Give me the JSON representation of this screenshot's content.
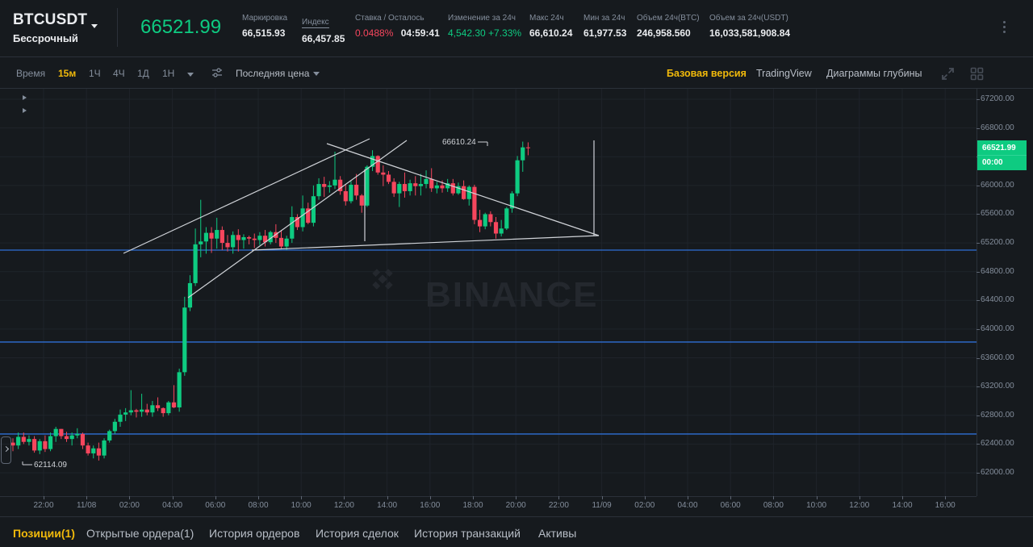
{
  "header": {
    "symbol": "BTCUSDT",
    "contract_type": "Бессрочный",
    "last_price": "66521.99",
    "stats": [
      {
        "label": "Маркировка",
        "value": "66,515.93"
      },
      {
        "label": "Индекс",
        "value": "66,457.85"
      },
      {
        "label": "Ставка / Осталось",
        "value": "0.0488%",
        "value2": "04:59:41"
      },
      {
        "label": "Изменение за 24ч",
        "value": "4,542.30 +7.33%"
      },
      {
        "label": "Макс 24ч",
        "value": "66,610.24"
      },
      {
        "label": "Мин за 24ч",
        "value": "61,977.53"
      },
      {
        "label": "Объем 24ч(BTC)",
        "value": "246,958.560"
      },
      {
        "label": "Объем за 24ч(USDT)",
        "value": "16,033,581,908.84"
      }
    ]
  },
  "toolbar": {
    "time_label": "Время",
    "intervals": [
      "15м",
      "1Ч",
      "4Ч",
      "1Д",
      "1Н"
    ],
    "active_interval": "15м",
    "price_type": "Последняя цена",
    "views": [
      "Базовая версия",
      "TradingView",
      "Диаграммы глубины"
    ],
    "active_view": "Базовая версия",
    "icons": [
      "settings-sliders-icon",
      "expand-icon",
      "grid-layout-icon"
    ]
  },
  "chart": {
    "watermark": "BINANCE",
    "current_price": "66521.99",
    "countdown": "00:00",
    "high_annotation": "66610.24",
    "low_annotation": "62114.09",
    "colors": {
      "up": "#0ecb81",
      "down": "#f6465d",
      "hline": "#2f6fd6",
      "drawing": "#c8c8c8",
      "accent": "#f0b90b"
    },
    "horizontal_lines": [
      65100,
      63820,
      62540
    ]
  },
  "chart_data": {
    "type": "candlestick",
    "title": "BTCUSDT Бессрочный 15м",
    "xlabel": "",
    "ylabel": "",
    "ylim": [
      61850,
      67350
    ],
    "y_ticks": [
      "67200.00",
      "66800.00",
      "66400.00",
      "66000.00",
      "65600.00",
      "65200.00",
      "64800.00",
      "64400.00",
      "64000.00",
      "63600.00",
      "63200.00",
      "62800.00",
      "62400.00",
      "62000.00"
    ],
    "x_ticks": [
      "22:00",
      "11/08",
      "02:00",
      "04:00",
      "06:00",
      "08:00",
      "10:00",
      "12:00",
      "14:00",
      "16:00",
      "18:00",
      "20:00",
      "22:00",
      "11/09",
      "02:00",
      "04:00",
      "06:00",
      "08:00",
      "10:00",
      "12:00",
      "14:00",
      "16:00"
    ],
    "candles_ohlc": [
      [
        62420,
        62480,
        62300,
        62380
      ],
      [
        62380,
        62560,
        62330,
        62500
      ],
      [
        62500,
        62560,
        62400,
        62430
      ],
      [
        62430,
        62520,
        62380,
        62470
      ],
      [
        62470,
        62510,
        62280,
        62310
      ],
      [
        62310,
        62470,
        62260,
        62440
      ],
      [
        62440,
        62520,
        62290,
        62330
      ],
      [
        62330,
        62560,
        62300,
        62510
      ],
      [
        62510,
        62640,
        62430,
        62610
      ],
      [
        62610,
        62610,
        62470,
        62510
      ],
      [
        62510,
        62570,
        62430,
        62470
      ],
      [
        62470,
        62560,
        62380,
        62520
      ],
      [
        62520,
        62620,
        62480,
        62540
      ],
      [
        62540,
        62560,
        62330,
        62380
      ],
      [
        62380,
        62420,
        62240,
        62270
      ],
      [
        62270,
        62380,
        62200,
        62340
      ],
      [
        62340,
        62420,
        62170,
        62240
      ],
      [
        62240,
        62480,
        62200,
        62450
      ],
      [
        62450,
        62600,
        62420,
        62580
      ],
      [
        62580,
        62750,
        62540,
        62710
      ],
      [
        62710,
        62880,
        62640,
        62810
      ],
      [
        62810,
        62900,
        62720,
        62840
      ],
      [
        62840,
        63150,
        62800,
        62870
      ],
      [
        62870,
        62890,
        62770,
        62850
      ],
      [
        62850,
        63100,
        62780,
        62880
      ],
      [
        62880,
        62960,
        62800,
        62840
      ],
      [
        62840,
        63000,
        62780,
        62940
      ],
      [
        62940,
        63050,
        62860,
        62900
      ],
      [
        62900,
        62910,
        62780,
        62830
      ],
      [
        62830,
        63000,
        62800,
        62980
      ],
      [
        62980,
        63220,
        62900,
        62910
      ],
      [
        62910,
        63450,
        62850,
        63400
      ],
      [
        63400,
        64450,
        63350,
        64300
      ],
      [
        64300,
        64750,
        64250,
        64640
      ],
      [
        64640,
        65400,
        64600,
        65180
      ],
      [
        65180,
        65800,
        65000,
        65220
      ],
      [
        65220,
        65420,
        65050,
        65340
      ],
      [
        65340,
        65420,
        65060,
        65260
      ],
      [
        65260,
        65550,
        65120,
        65380
      ],
      [
        65380,
        65430,
        65100,
        65200
      ],
      [
        65200,
        65310,
        65080,
        65140
      ],
      [
        65140,
        65360,
        65050,
        65310
      ],
      [
        65310,
        65390,
        65080,
        65240
      ],
      [
        65240,
        65320,
        65120,
        65280
      ],
      [
        65280,
        65300,
        65180,
        65260
      ],
      [
        65260,
        65330,
        65130,
        65240
      ],
      [
        65240,
        65350,
        65170,
        65300
      ],
      [
        65300,
        65380,
        65150,
        65210
      ],
      [
        65210,
        65370,
        65180,
        65350
      ],
      [
        65350,
        65460,
        65200,
        65270
      ],
      [
        65270,
        65380,
        65110,
        65150
      ],
      [
        65150,
        65300,
        65100,
        65260
      ],
      [
        65260,
        65710,
        65200,
        65560
      ],
      [
        65560,
        65600,
        65380,
        65420
      ],
      [
        65420,
        65860,
        65360,
        65680
      ],
      [
        65680,
        65760,
        65460,
        65480
      ],
      [
        65480,
        66000,
        65430,
        65850
      ],
      [
        65850,
        66100,
        65800,
        66020
      ],
      [
        66020,
        66120,
        65840,
        65980
      ],
      [
        65980,
        66060,
        65900,
        66000
      ],
      [
        66000,
        66470,
        65950,
        66080
      ],
      [
        66080,
        66130,
        65870,
        65920
      ],
      [
        65920,
        66010,
        65720,
        65780
      ],
      [
        65780,
        66060,
        65750,
        66010
      ],
      [
        66010,
        66160,
        65800,
        65860
      ],
      [
        65860,
        65880,
        65620,
        65720
      ],
      [
        65720,
        66280,
        65700,
        66260
      ],
      [
        66260,
        66490,
        66200,
        66410
      ],
      [
        66410,
        66420,
        66150,
        66180
      ],
      [
        66180,
        66280,
        65990,
        66150
      ],
      [
        66150,
        66200,
        66020,
        66050
      ],
      [
        66050,
        66100,
        65840,
        65890
      ],
      [
        65890,
        66050,
        65700,
        66020
      ],
      [
        66020,
        66180,
        65830,
        65920
      ],
      [
        65920,
        66080,
        65860,
        66030
      ],
      [
        66030,
        66130,
        65860,
        65990
      ],
      [
        65990,
        66160,
        65860,
        66020
      ],
      [
        66020,
        66210,
        65960,
        66090
      ],
      [
        66090,
        66240,
        65910,
        65960
      ],
      [
        65960,
        66050,
        65890,
        66000
      ],
      [
        66000,
        66070,
        65900,
        65960
      ],
      [
        65960,
        66090,
        65910,
        66030
      ],
      [
        66030,
        66090,
        65860,
        65890
      ],
      [
        65890,
        66040,
        65870,
        65990
      ],
      [
        65990,
        66070,
        65800,
        65810
      ],
      [
        65810,
        66000,
        65720,
        65980
      ],
      [
        65980,
        66010,
        65460,
        65520
      ],
      [
        65520,
        65660,
        65350,
        65430
      ],
      [
        65430,
        65620,
        65390,
        65600
      ],
      [
        65600,
        65640,
        65430,
        65490
      ],
      [
        65490,
        65560,
        65260,
        65330
      ],
      [
        65330,
        65520,
        65290,
        65400
      ],
      [
        65400,
        65700,
        65380,
        65680
      ],
      [
        65680,
        65920,
        65620,
        65890
      ],
      [
        65890,
        66410,
        65850,
        66350
      ],
      [
        66350,
        66610,
        66190,
        66530
      ],
      [
        66530,
        66600,
        66420,
        66522
      ]
    ]
  },
  "bottom_tabs": {
    "items": [
      "Позиции(1)",
      "Открытые ордера(1)",
      "История ордеров",
      "История сделок",
      "История транзакций",
      "Активы"
    ],
    "active": "Позиции(1)"
  }
}
